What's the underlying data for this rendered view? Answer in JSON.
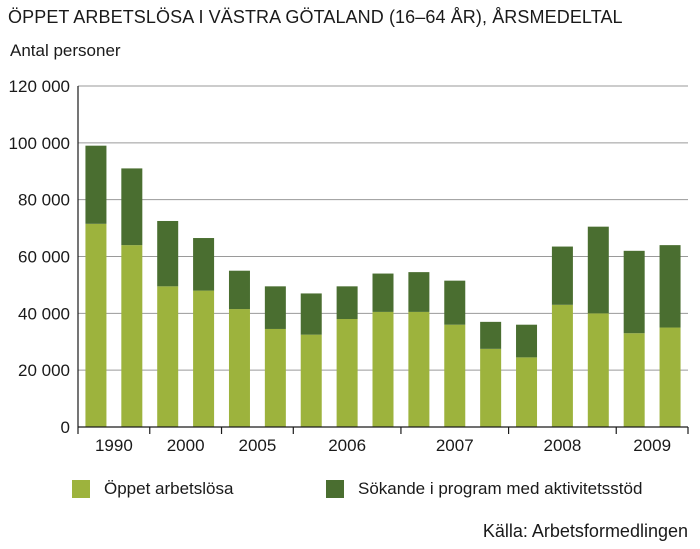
{
  "chart_data": {
    "type": "bar",
    "stacked": true,
    "title": "ÖPPET ARBETSLÖSA I VÄSTRA GÖTALAND (16–64 ÅR), ÅRSMEDELTAL",
    "ylabel": "Antal personer",
    "xlabel": "",
    "ylim": [
      0,
      120000
    ],
    "yticks": [
      0,
      20000,
      40000,
      60000,
      80000,
      100000,
      120000
    ],
    "ytick_labels": [
      "0",
      "20 000",
      "40 000",
      "60 000",
      "80 000",
      "100 000",
      "120 000"
    ],
    "grid": true,
    "x_group_labels": [
      "1990",
      "2000",
      "2005",
      "2006",
      "2007",
      "2008",
      "2009"
    ],
    "categories": [
      "",
      "",
      "",
      "",
      "",
      "",
      "",
      "",
      "",
      "",
      "",
      "",
      "",
      "",
      "",
      "",
      ""
    ],
    "series": [
      {
        "name": "Öppet arbetslösa",
        "color": "#9db33d",
        "values": [
          71500,
          64000,
          49500,
          48000,
          41500,
          34500,
          32500,
          38000,
          40500,
          40500,
          36000,
          27500,
          24500,
          43000,
          40000,
          33000,
          35000
        ]
      },
      {
        "name": "Sökande i program med aktivitetsstöd",
        "color": "#4a6e30",
        "values": [
          27500,
          27000,
          23000,
          18500,
          13500,
          15000,
          14500,
          11500,
          13500,
          14000,
          15500,
          9500,
          11500,
          20500,
          30500,
          29000,
          29000
        ]
      }
    ],
    "legend_position": "bottom",
    "source": "Källa: Arbetsformedlingen"
  }
}
